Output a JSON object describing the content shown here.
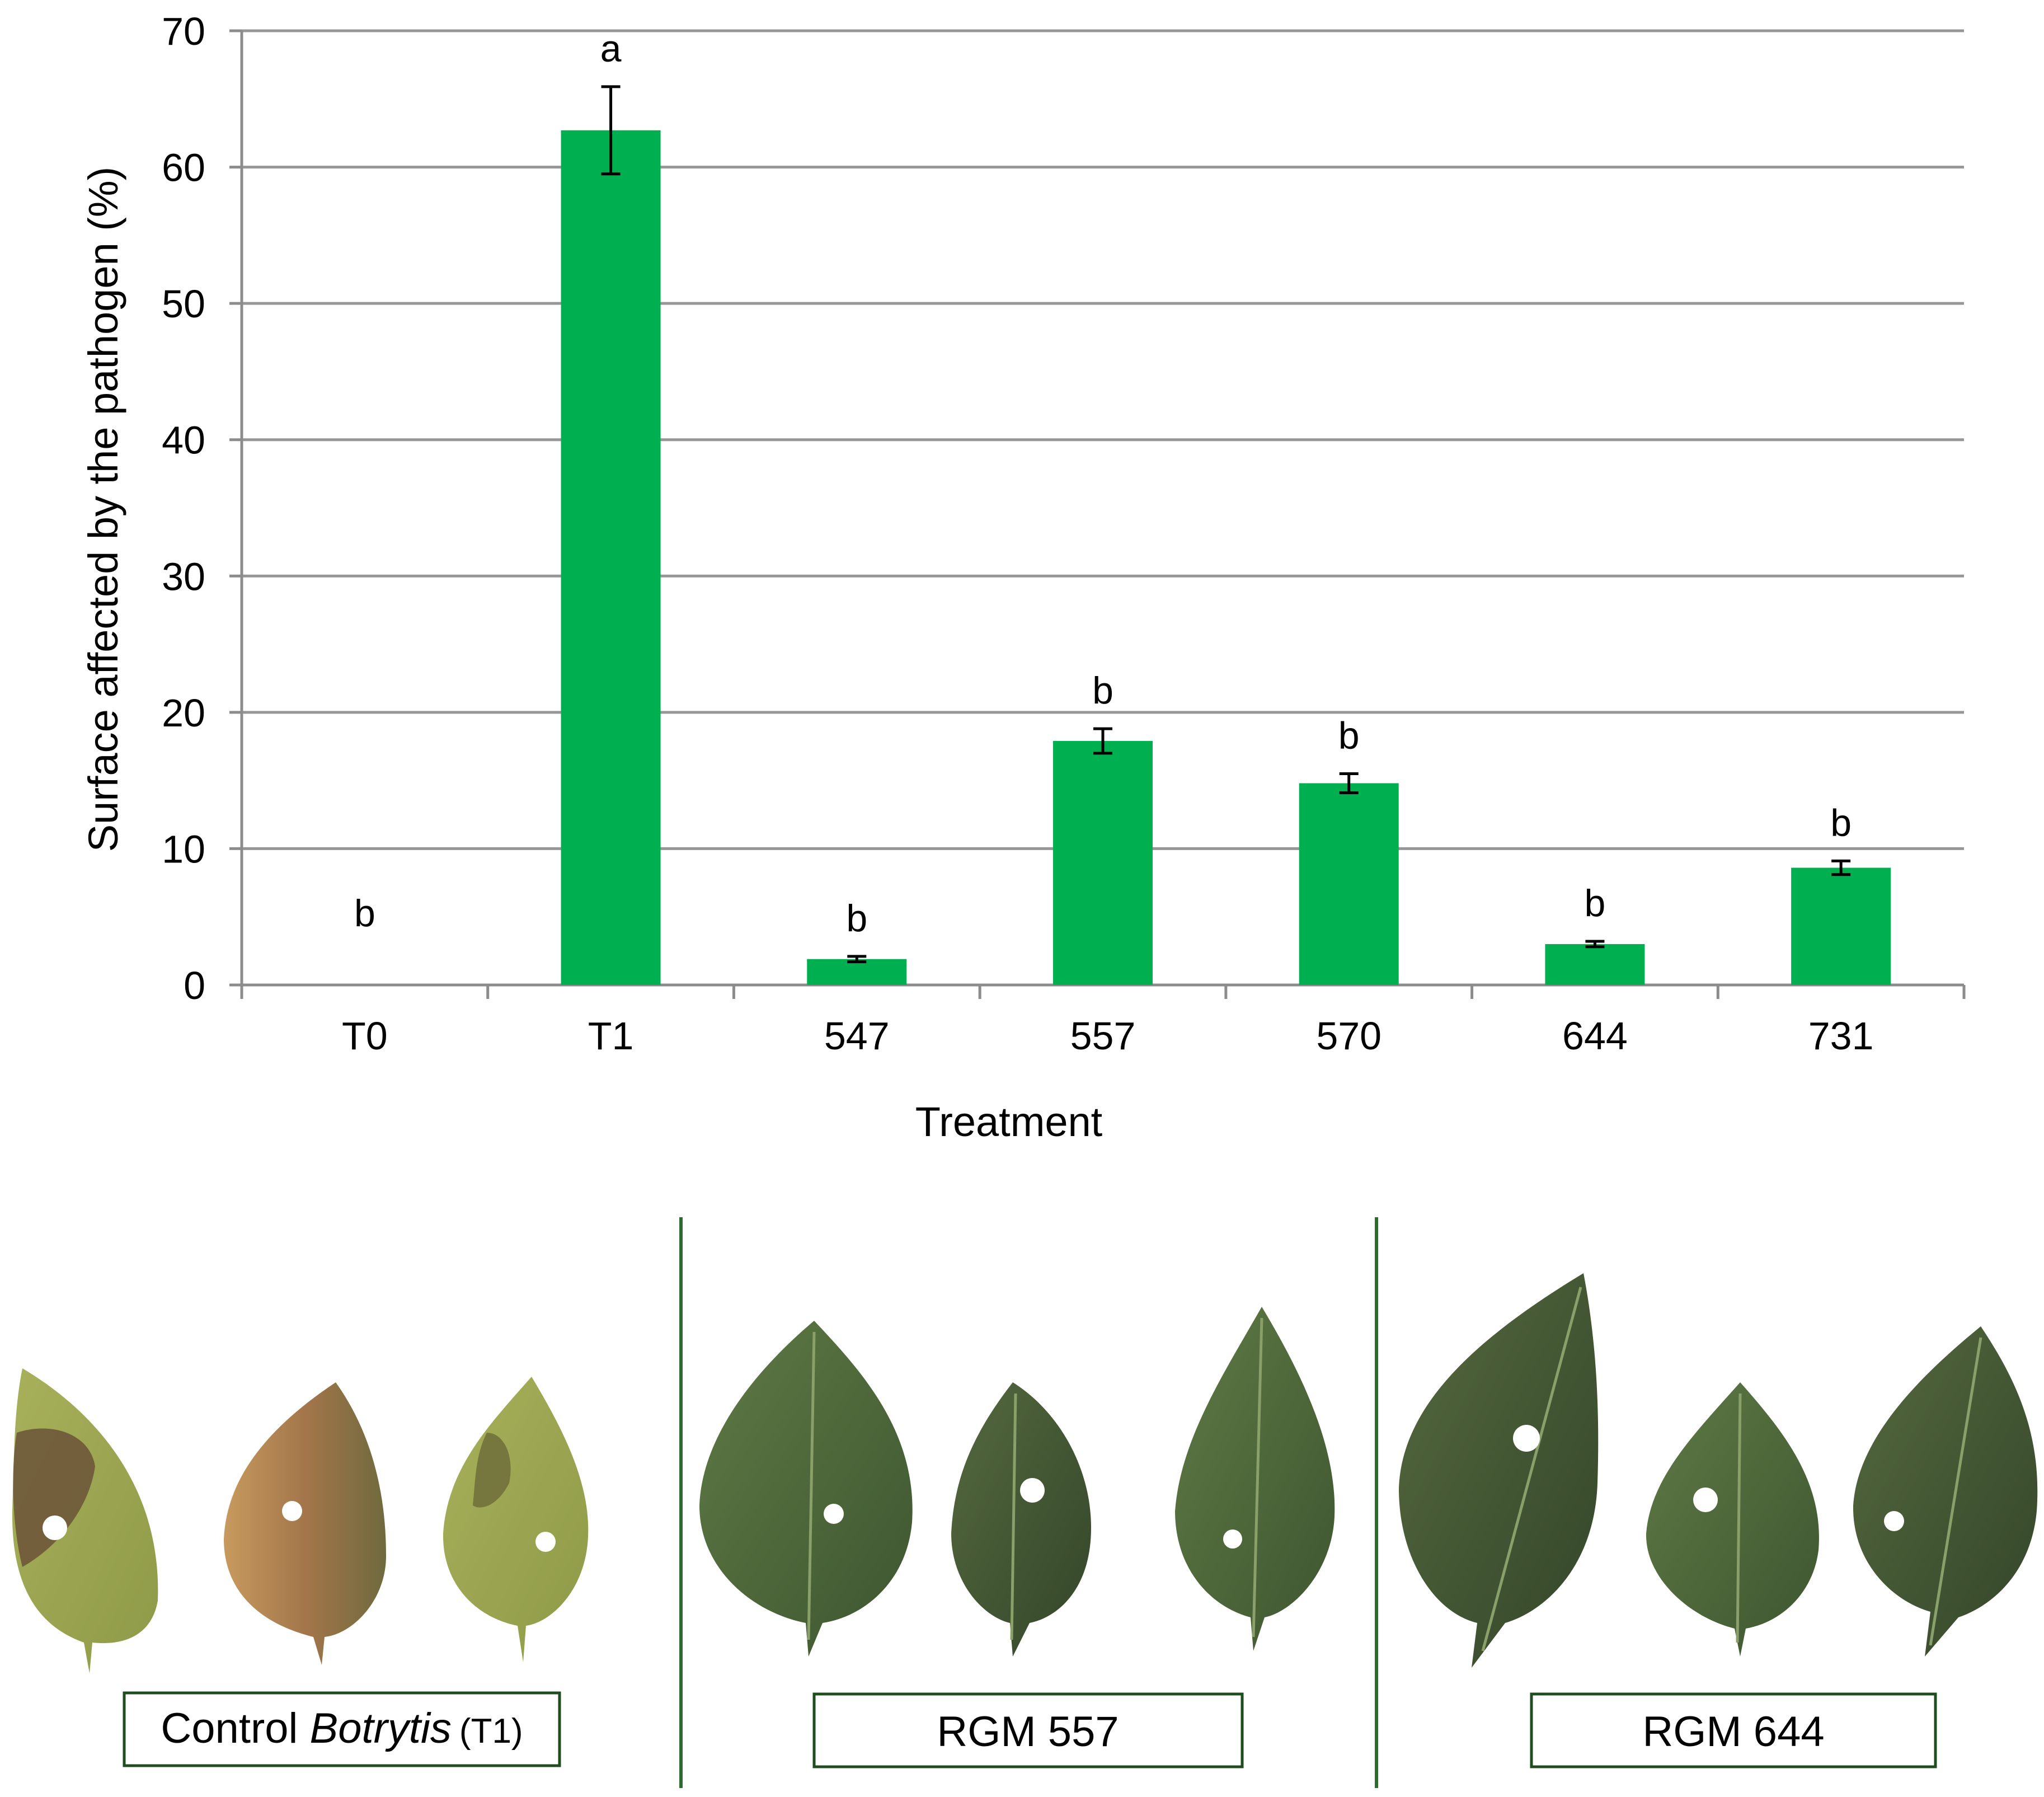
{
  "chart_data": {
    "type": "bar",
    "title": "",
    "xlabel": "Treatment",
    "ylabel": "Surface affected by the pathogen (%)",
    "ylim": [
      0,
      70
    ],
    "yticks": [
      "0",
      "10",
      "20",
      "30",
      "40",
      "50",
      "60",
      "70"
    ],
    "grid": true,
    "categories": [
      "T0",
      "T1",
      "547",
      "557",
      "570",
      "644",
      "731"
    ],
    "values": [
      0,
      62.7,
      1.9,
      17.9,
      14.8,
      3.0,
      8.6
    ],
    "errors": [
      0,
      3.2,
      0.2,
      0.9,
      0.7,
      0.2,
      0.5
    ],
    "significance_letters": [
      "b",
      "a",
      "b",
      "b",
      "b",
      "b",
      "b"
    ],
    "bar_color": "#00B050"
  },
  "leaf_panels": [
    {
      "caption_prefix": "Control ",
      "caption_italic": "Botrytis",
      "caption_suffix": "(T1)"
    },
    {
      "caption": "RGM 557"
    },
    {
      "caption": "RGM 644"
    }
  ],
  "colors": {
    "grid": "#969696",
    "axis": "#8c8c8c",
    "divider": "#2e6b2e",
    "caption_border": "#1f4d1f"
  }
}
